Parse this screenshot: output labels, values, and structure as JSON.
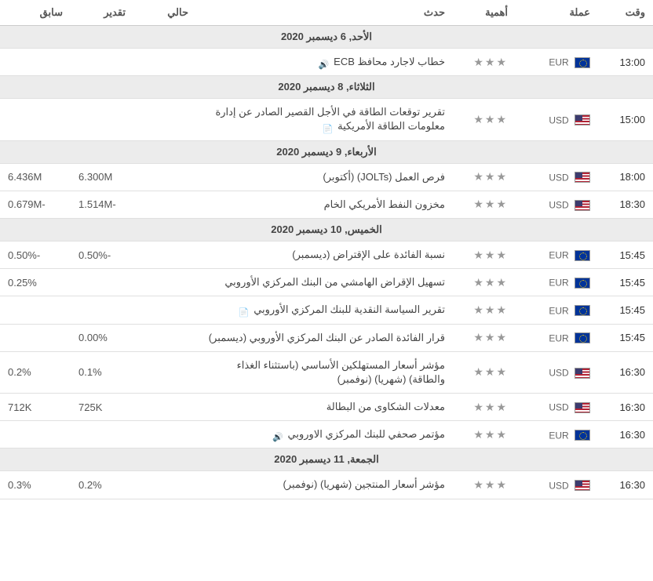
{
  "headers": {
    "time": "وقت",
    "currency": "عملة",
    "importance": "أهمية",
    "event": "حدث",
    "actual": "حالي",
    "forecast": "تقدير",
    "previous": "سابق"
  },
  "groups": [
    {
      "date": "الأحد, 6 ديسمبر 2020",
      "rows": [
        {
          "time": "13:00",
          "currency": "EUR",
          "flag": "eur",
          "stars": 3,
          "event": "خطاب لاجارد محافظ ECB",
          "audio": true,
          "actual": "",
          "forecast": "",
          "previous": ""
        }
      ]
    },
    {
      "date": "الثلاثاء, 8 ديسمبر 2020",
      "rows": [
        {
          "time": "15:00",
          "currency": "USD",
          "flag": "usd",
          "stars": 3,
          "event": "تقرير توقعات الطاقة في الأجل القصير الصادر عن إدارة معلومات الطاقة الأمريكية",
          "doc": true,
          "actual": "",
          "forecast": "",
          "previous": ""
        }
      ]
    },
    {
      "date": "الأربعاء, 9 ديسمبر 2020",
      "rows": [
        {
          "time": "18:00",
          "currency": "USD",
          "flag": "usd",
          "stars": 3,
          "event": "فرص العمل (JOLTs) (أكتوبر)",
          "actual": "",
          "forecast": "6.300M",
          "previous": "6.436M"
        },
        {
          "time": "18:30",
          "currency": "USD",
          "flag": "usd",
          "stars": 3,
          "event": "مخزون النفط الأمريكي الخام",
          "actual": "",
          "forecast": "-1.514M",
          "previous": "-0.679M"
        }
      ]
    },
    {
      "date": "الخميس, 10 ديسمبر 2020",
      "rows": [
        {
          "time": "15:45",
          "currency": "EUR",
          "flag": "eur",
          "stars": 3,
          "event": "نسبة الفائدة على الإقتراض (ديسمبر)",
          "actual": "",
          "forecast": "-0.50%",
          "previous": "-0.50%"
        },
        {
          "time": "15:45",
          "currency": "EUR",
          "flag": "eur",
          "stars": 3,
          "event": "تسهيل الإقراض الهامشي من البنك المركزي الأوروبي",
          "actual": "",
          "forecast": "",
          "previous": "0.25%"
        },
        {
          "time": "15:45",
          "currency": "EUR",
          "flag": "eur",
          "stars": 3,
          "event": "تقرير السياسة النقدية للبنك المركزي الأوروبي",
          "doc": true,
          "actual": "",
          "forecast": "",
          "previous": ""
        },
        {
          "time": "15:45",
          "currency": "EUR",
          "flag": "eur",
          "stars": 3,
          "event": "قرار الفائدة الصادر عن البنك المركزي الأوروبي (ديسمبر)",
          "actual": "",
          "forecast": "0.00%",
          "previous": ""
        },
        {
          "time": "16:30",
          "currency": "USD",
          "flag": "usd",
          "stars": 3,
          "event": "مؤشر أسعار المستهلكين الأساسي (باستثناء الغذاء والطاقة) (شهريا) (نوفمبر)",
          "actual": "",
          "forecast": "0.1%",
          "previous": "0.2%"
        },
        {
          "time": "16:30",
          "currency": "USD",
          "flag": "usd",
          "stars": 3,
          "event": "معدلات الشكاوى من البطالة",
          "actual": "",
          "forecast": "725K",
          "previous": "712K",
          "previousClass": "green"
        },
        {
          "time": "16:30",
          "currency": "EUR",
          "flag": "eur",
          "stars": 3,
          "event": "مؤتمر صحفي للبنك المركزي الاوروبي",
          "audio": true,
          "actual": "",
          "forecast": "",
          "previous": ""
        }
      ]
    },
    {
      "date": "الجمعة, 11 ديسمبر 2020",
      "rows": [
        {
          "time": "16:30",
          "currency": "USD",
          "flag": "usd",
          "stars": 3,
          "event": "مؤشر أسعار المنتجين (شهريا) (نوفمبر)",
          "actual": "",
          "forecast": "0.2%",
          "previous": "0.3%"
        }
      ]
    }
  ],
  "style": {
    "background": "#ffffff",
    "date_row_bg": "#ececec",
    "border_color": "#e0e0e0",
    "text_color": "#444444",
    "muted_color": "#999999",
    "green": "#2e8b2e",
    "fontsize": 13
  }
}
